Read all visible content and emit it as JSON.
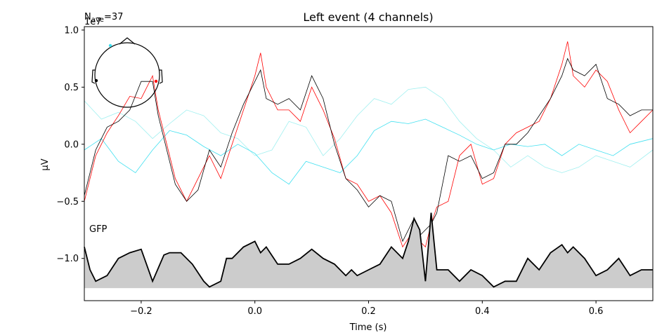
{
  "chart_data": {
    "type": "line",
    "title": "Left event (4 channels)",
    "nave_label": "N",
    "nave_sub": "ave",
    "nave_value": "=37",
    "scale_label": "1e7",
    "xlabel": "Time (s)",
    "ylabel": "µV",
    "gfp_label": "GFP",
    "xlim": [
      -0.3,
      0.7
    ],
    "ylim": [
      -1.37,
      1.03
    ],
    "x_ticks": [
      -0.2,
      0.0,
      0.2,
      0.4,
      0.6
    ],
    "x_tick_labels": [
      "−0.2",
      "0.0",
      "0.2",
      "0.4",
      "0.6"
    ],
    "y_ticks": [
      1.0,
      0.5,
      0.0,
      -0.5,
      -1.0
    ],
    "y_tick_labels": [
      "1.0",
      "0.5",
      "0.0",
      "−0.5",
      "−1.0"
    ],
    "gfp_baseline": -1.26,
    "series": [
      {
        "color": "#a0f0f0",
        "x": [
          -0.3,
          -0.27,
          -0.24,
          -0.21,
          -0.18,
          -0.15,
          -0.12,
          -0.09,
          -0.06,
          -0.03,
          0.0,
          0.03,
          0.06,
          0.09,
          0.12,
          0.15,
          0.18,
          0.21,
          0.24,
          0.27,
          0.3,
          0.33,
          0.36,
          0.39,
          0.42,
          0.45,
          0.48,
          0.51,
          0.54,
          0.57,
          0.6,
          0.63,
          0.66,
          0.7
        ],
        "y": [
          0.38,
          0.22,
          0.28,
          0.2,
          0.05,
          0.18,
          0.3,
          0.25,
          0.1,
          0.05,
          -0.1,
          -0.05,
          0.2,
          0.15,
          -0.1,
          0.05,
          0.25,
          0.4,
          0.35,
          0.48,
          0.5,
          0.4,
          0.2,
          0.05,
          -0.05,
          -0.2,
          -0.1,
          -0.2,
          -0.25,
          -0.2,
          -0.1,
          -0.15,
          -0.2,
          -0.05
        ]
      },
      {
        "color": "#40e0f0",
        "x": [
          -0.3,
          -0.27,
          -0.24,
          -0.21,
          -0.18,
          -0.15,
          -0.12,
          -0.09,
          -0.06,
          -0.03,
          0.0,
          0.03,
          0.06,
          0.09,
          0.12,
          0.15,
          0.18,
          0.21,
          0.24,
          0.27,
          0.3,
          0.33,
          0.36,
          0.39,
          0.42,
          0.45,
          0.48,
          0.51,
          0.54,
          0.57,
          0.6,
          0.63,
          0.66,
          0.7
        ],
        "y": [
          -0.05,
          0.05,
          -0.15,
          -0.25,
          -0.05,
          0.12,
          0.08,
          -0.02,
          -0.1,
          0.0,
          -0.08,
          -0.25,
          -0.35,
          -0.15,
          -0.2,
          -0.25,
          -0.1,
          0.12,
          0.2,
          0.18,
          0.22,
          0.15,
          0.08,
          0.0,
          -0.05,
          0.0,
          -0.02,
          0.0,
          -0.1,
          0.0,
          -0.05,
          -0.1,
          0.0,
          0.05
        ]
      },
      {
        "color": "#ff0000",
        "x": [
          -0.3,
          -0.28,
          -0.26,
          -0.24,
          -0.22,
          -0.2,
          -0.18,
          -0.17,
          -0.16,
          -0.14,
          -0.12,
          -0.1,
          -0.08,
          -0.06,
          -0.04,
          -0.02,
          0.0,
          0.01,
          0.02,
          0.04,
          0.06,
          0.08,
          0.1,
          0.12,
          0.14,
          0.16,
          0.18,
          0.2,
          0.22,
          0.24,
          0.26,
          0.28,
          0.29,
          0.3,
          0.31,
          0.32,
          0.34,
          0.36,
          0.38,
          0.4,
          0.42,
          0.44,
          0.46,
          0.48,
          0.5,
          0.52,
          0.54,
          0.55,
          0.56,
          0.58,
          0.6,
          0.62,
          0.64,
          0.66,
          0.68,
          0.7
        ],
        "y": [
          -0.5,
          -0.1,
          0.1,
          0.25,
          0.42,
          0.4,
          0.6,
          0.3,
          0.1,
          -0.3,
          -0.5,
          -0.3,
          -0.1,
          -0.3,
          0.0,
          0.3,
          0.6,
          0.8,
          0.5,
          0.3,
          0.3,
          0.2,
          0.5,
          0.3,
          0.05,
          -0.3,
          -0.35,
          -0.5,
          -0.45,
          -0.6,
          -0.9,
          -0.75,
          -0.85,
          -0.9,
          -0.7,
          -0.55,
          -0.5,
          -0.1,
          0.0,
          -0.35,
          -0.3,
          0.0,
          0.1,
          0.15,
          0.2,
          0.4,
          0.7,
          0.9,
          0.6,
          0.5,
          0.65,
          0.55,
          0.3,
          0.1,
          0.2,
          0.3
        ]
      },
      {
        "color": "#000000",
        "x": [
          -0.3,
          -0.28,
          -0.26,
          -0.24,
          -0.22,
          -0.2,
          -0.18,
          -0.17,
          -0.16,
          -0.14,
          -0.12,
          -0.1,
          -0.08,
          -0.06,
          -0.04,
          -0.02,
          0.0,
          0.01,
          0.02,
          0.04,
          0.06,
          0.08,
          0.1,
          0.12,
          0.14,
          0.16,
          0.18,
          0.2,
          0.22,
          0.24,
          0.26,
          0.28,
          0.29,
          0.3,
          0.31,
          0.32,
          0.34,
          0.36,
          0.38,
          0.4,
          0.42,
          0.44,
          0.46,
          0.48,
          0.5,
          0.52,
          0.54,
          0.55,
          0.56,
          0.58,
          0.6,
          0.62,
          0.64,
          0.66,
          0.68,
          0.7
        ],
        "y": [
          -0.45,
          -0.05,
          0.15,
          0.2,
          0.3,
          0.55,
          0.55,
          0.25,
          0.05,
          -0.35,
          -0.5,
          -0.4,
          -0.05,
          -0.2,
          0.1,
          0.35,
          0.55,
          0.65,
          0.4,
          0.35,
          0.4,
          0.3,
          0.6,
          0.4,
          0.0,
          -0.3,
          -0.4,
          -0.55,
          -0.45,
          -0.5,
          -0.85,
          -0.65,
          -0.8,
          -0.75,
          -0.7,
          -0.6,
          -0.1,
          -0.15,
          -0.1,
          -0.3,
          -0.25,
          0.0,
          0.0,
          0.1,
          0.25,
          0.4,
          0.6,
          0.75,
          0.65,
          0.6,
          0.7,
          0.4,
          0.35,
          0.25,
          0.3,
          0.3
        ]
      },
      {
        "name": "GFP",
        "color": "#000000",
        "x": [
          -0.3,
          -0.29,
          -0.28,
          -0.26,
          -0.24,
          -0.22,
          -0.2,
          -0.18,
          -0.16,
          -0.15,
          -0.13,
          -0.11,
          -0.09,
          -0.08,
          -0.06,
          -0.05,
          -0.04,
          -0.02,
          0.0,
          0.01,
          0.02,
          0.04,
          0.06,
          0.08,
          0.1,
          0.12,
          0.14,
          0.16,
          0.17,
          0.18,
          0.2,
          0.22,
          0.24,
          0.26,
          0.27,
          0.28,
          0.29,
          0.3,
          0.31,
          0.32,
          0.34,
          0.36,
          0.38,
          0.4,
          0.42,
          0.44,
          0.46,
          0.48,
          0.5,
          0.52,
          0.54,
          0.55,
          0.56,
          0.58,
          0.6,
          0.62,
          0.64,
          0.66,
          0.68,
          0.7
        ],
        "y": [
          -0.9,
          -1.1,
          -1.2,
          -1.15,
          -1.0,
          -0.95,
          -0.92,
          -1.2,
          -0.97,
          -0.95,
          -0.95,
          -1.05,
          -1.2,
          -1.25,
          -1.2,
          -1.0,
          -1.0,
          -0.9,
          -0.85,
          -0.95,
          -0.9,
          -1.05,
          -1.05,
          -1.0,
          -0.92,
          -1.0,
          -1.05,
          -1.15,
          -1.1,
          -1.15,
          -1.1,
          -1.05,
          -0.9,
          -1.0,
          -0.85,
          -0.65,
          -0.75,
          -1.2,
          -0.6,
          -1.1,
          -1.1,
          -1.2,
          -1.1,
          -1.15,
          -1.25,
          -1.2,
          -1.2,
          -1.0,
          -1.1,
          -0.95,
          -0.88,
          -0.95,
          -0.9,
          -1.0,
          -1.15,
          -1.1,
          -1.0,
          -1.15,
          -1.1,
          -1.1
        ]
      }
    ]
  }
}
